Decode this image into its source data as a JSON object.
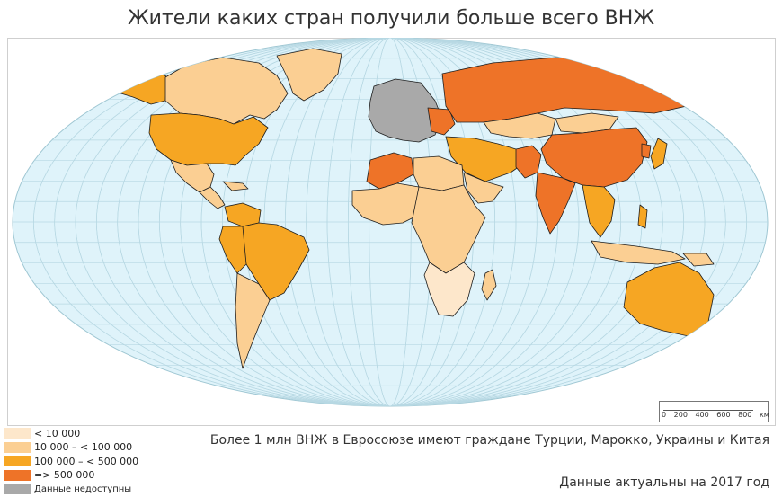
{
  "title": "Жители каких стран получили больше всего ВНЖ",
  "colors": {
    "ocean": "#dff3fa",
    "grid": "#b7d8e3",
    "border": "#1e1e1e",
    "lt10k": "#fde7cb",
    "10k_100k": "#fbcf93",
    "100k_500k": "#f6a623",
    "gt500k": "#ee7328",
    "na": "#a9a9a9"
  },
  "legend": [
    {
      "label": "< 10 000",
      "color": "#fde7cb"
    },
    {
      "label": "10 000 – < 100 000",
      "color": "#fbcf93"
    },
    {
      "label": "100 000 – < 500 000",
      "color": "#f6a623"
    },
    {
      "label": "=> 500 000",
      "color": "#ee7328"
    },
    {
      "label": "Данные недоступны",
      "color": "#a9a9a9"
    }
  ],
  "scalebar": {
    "labels": [
      "0",
      "200",
      "400",
      "600",
      "800",
      "км"
    ]
  },
  "note": "Более 1 млн ВНЖ в Евросоюзе имеют граждане Турции, Марокко, Украины и Китая",
  "date_note": "Данные актуальны на 2017 год",
  "regions": [
    {
      "name": "canada",
      "class": "10k_100k"
    },
    {
      "name": "usa",
      "class": "100k_500k"
    },
    {
      "name": "alaska",
      "class": "100k_500k"
    },
    {
      "name": "mexico",
      "class": "10k_100k"
    },
    {
      "name": "greenland",
      "class": "10k_100k"
    },
    {
      "name": "brazil",
      "class": "100k_500k"
    },
    {
      "name": "argentina",
      "class": "10k_100k"
    },
    {
      "name": "russia",
      "class": "gt500k"
    },
    {
      "name": "china",
      "class": "gt500k"
    },
    {
      "name": "india",
      "class": "gt500k"
    },
    {
      "name": "australia",
      "class": "100k_500k"
    },
    {
      "name": "europe",
      "class": "na"
    },
    {
      "name": "north-africa",
      "class": "gt500k"
    },
    {
      "name": "africa",
      "class": "10k_100k"
    }
  ]
}
